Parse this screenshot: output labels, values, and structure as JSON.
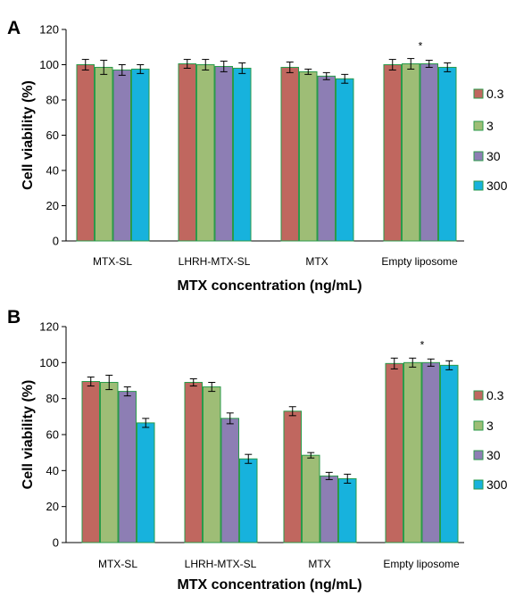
{
  "chart_data": [
    {
      "type": "bar",
      "panel": "A",
      "categories": [
        "MTX-SL",
        "LHRH-MTX-SL",
        "MTX",
        "Empty liposome"
      ],
      "series": [
        {
          "name": "0.3",
          "values": [
            100,
            100.5,
            98.5,
            100
          ],
          "errors": [
            3,
            2.5,
            3,
            3
          ]
        },
        {
          "name": "3",
          "values": [
            98.5,
            100,
            96,
            100.5
          ],
          "errors": [
            4,
            3,
            1.5,
            3
          ]
        },
        {
          "name": "30",
          "values": [
            97,
            99,
            93.5,
            100.5
          ],
          "errors": [
            3,
            3,
            2,
            2
          ]
        },
        {
          "name": "300",
          "values": [
            97.5,
            98,
            92,
            98.5
          ],
          "errors": [
            2.5,
            3,
            2.5,
            2.5
          ]
        }
      ],
      "ylabel": "Cell viability (%)",
      "xlabel": "MTX concentration (ng/mL)",
      "ylim": [
        0,
        120
      ],
      "yticks": [
        "0",
        "20",
        "40",
        "60",
        "80",
        "100",
        "120"
      ],
      "annotation": "*",
      "legend_position": "right"
    },
    {
      "type": "bar",
      "panel": "B",
      "categories": [
        "MTX-SL",
        "LHRH-MTX-SL",
        "MTX",
        "Empty liposome"
      ],
      "series": [
        {
          "name": "0.3",
          "values": [
            89.5,
            89,
            73,
            99.5
          ],
          "errors": [
            2.5,
            2,
            2.5,
            3
          ]
        },
        {
          "name": "3",
          "values": [
            89,
            86.5,
            48.5,
            100
          ],
          "errors": [
            4,
            2.5,
            1.5,
            2.5
          ]
        },
        {
          "name": "30",
          "values": [
            84,
            69,
            37,
            100
          ],
          "errors": [
            2.5,
            3,
            2,
            2
          ]
        },
        {
          "name": "300",
          "values": [
            66.5,
            46.5,
            35.5,
            98.5
          ],
          "errors": [
            2.5,
            2.5,
            2.5,
            2.5
          ]
        }
      ],
      "ylabel": "Cell viability (%)",
      "xlabel": "MTX concentration (ng/mL)",
      "ylim": [
        0,
        120
      ],
      "yticks": [
        "0",
        "20",
        "40",
        "60",
        "80",
        "100",
        "120"
      ],
      "annotation": "*",
      "legend_position": "right"
    }
  ],
  "colors": {
    "0.3": "#c0675f",
    "3": "#9ebd76",
    "30": "#8d7eb4",
    "300": "#17b2dd",
    "bar_border": "#2a9a4a",
    "axis": "#000000"
  }
}
